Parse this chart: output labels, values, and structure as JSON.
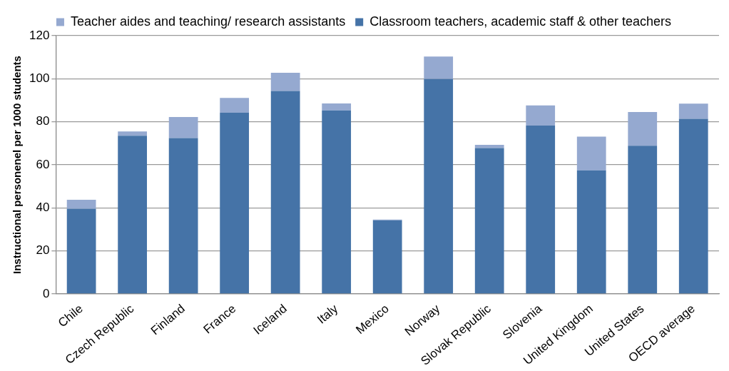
{
  "chart_data": {
    "type": "bar",
    "stacked": true,
    "ylabel": "Instructional personenel per 1000 students",
    "categories": [
      "Chile",
      "Czech Republic",
      "Finland",
      "France",
      "Iceland",
      "Italy",
      "Mexico",
      "Norway",
      "Slovak Republic",
      "Slovenia",
      "United Kingdom",
      "United States",
      "OECD average"
    ],
    "series": [
      {
        "name": "Classroom teachers, academic staff & other teachers",
        "color": "#4573a7",
        "values": [
          39.6,
          73.5,
          72.4,
          84.2,
          94.3,
          85.3,
          34.2,
          99.9,
          67.8,
          78.2,
          57.4,
          68.9,
          81.4
        ]
      },
      {
        "name": "Teacher aides and teaching/ research assistants",
        "color": "#95a9d0",
        "values": [
          4.2,
          2,
          9.8,
          6.9,
          8.5,
          3.2,
          0.4,
          10.4,
          1.5,
          9.4,
          15.7,
          15.6,
          7
        ]
      }
    ],
    "ylim": [
      0,
      120
    ],
    "yticks": [
      0,
      20,
      40,
      60,
      80,
      100,
      120
    ],
    "grid": "y",
    "legend": "top"
  }
}
